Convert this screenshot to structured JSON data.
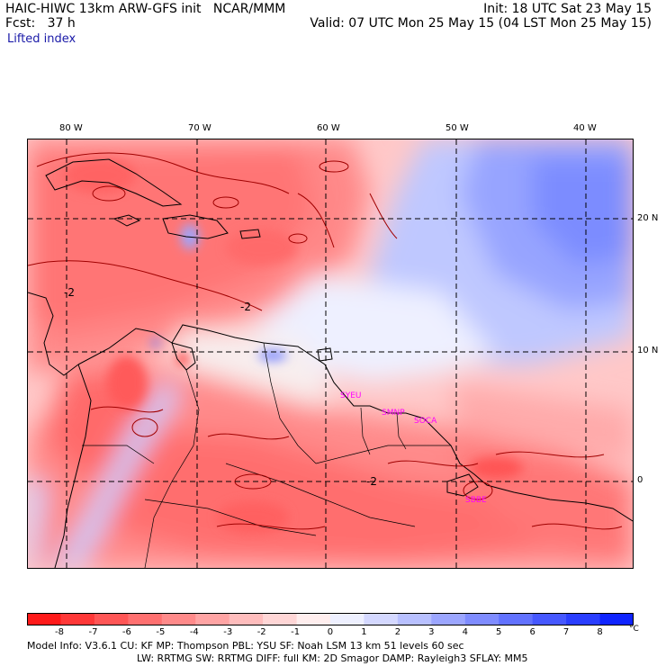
{
  "header": {
    "model": "HAIC-HIWC 13km ARW-GFS init",
    "center": "NCAR/MMM",
    "init": "Init: 18 UTC Sat 23 May 15",
    "fcst_label": "Fcst:",
    "fcst_value": "37 h",
    "valid": "Valid: 07 UTC Mon 25 May 15 (04 LST Mon 25 May 15)",
    "field": "Lifted index"
  },
  "map": {
    "lon_labels": [
      "80 W",
      "70 W",
      "60 W",
      "50 W",
      "40 W"
    ],
    "lat_labels": [
      "20 N",
      "10 N",
      "0"
    ],
    "contour_labels": [
      "-2",
      "-2",
      "-2"
    ],
    "stations": [
      "SYEU",
      "SMNP",
      "SOCA",
      "SBBE"
    ],
    "station_color": "#ff00ff"
  },
  "colorbar": {
    "tick_labels": [
      "-8",
      "-7",
      "-6",
      "-5",
      "-4",
      "-3",
      "-2",
      "-1",
      "0",
      "1",
      "2",
      "3",
      "4",
      "5",
      "6",
      "7",
      "8"
    ],
    "unit": "°C",
    "colors": [
      "#ff1a1a",
      "#ff3838",
      "#ff5656",
      "#ff7070",
      "#ff8a8a",
      "#ffa4a4",
      "#ffbdbd",
      "#ffd6d6",
      "#ffeeee",
      "#eef0ff",
      "#d4d8ff",
      "#b8c0ff",
      "#9ca6ff",
      "#7f8cff",
      "#6272ff",
      "#4658ff",
      "#2a3eff",
      "#0f24ff"
    ]
  },
  "footer": {
    "line1": "Model Info: V3.6.1    CU: KF     MP: Thompson    PBL: YSU      SF: Noah LSM    13 km   51 levels   60 sec",
    "line2": "LW: RRTMG    SW: RRTMG   DIFF: full   KM: 2D Smagor DAMP: Rayleigh3   SFLAY: MM5"
  }
}
